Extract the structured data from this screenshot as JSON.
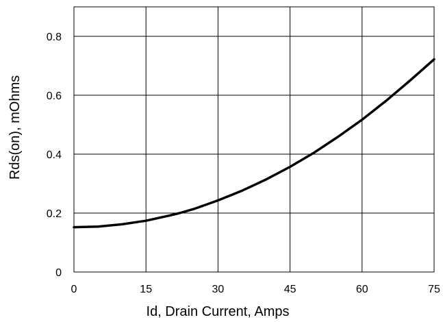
{
  "chart_data": {
    "type": "line",
    "title": "",
    "xlabel": "Id, Drain Current, Amps",
    "ylabel": "Rds(on),  mOhms",
    "xlim": [
      0,
      75
    ],
    "ylim": [
      0,
      0.9
    ],
    "xticks": [
      0,
      15,
      30,
      45,
      60,
      75
    ],
    "xtick_labels": [
      "0",
      "15",
      "30",
      "45",
      "60",
      "75"
    ],
    "yticks": [
      0,
      0.2,
      0.4,
      0.6,
      0.8
    ],
    "ytick_labels": [
      "0",
      "0.2",
      "0.4",
      "0.6",
      "0.8"
    ],
    "grid": true,
    "legend": "none",
    "series": [
      {
        "color": "#000000",
        "x": [
          0,
          5,
          10,
          15,
          20,
          22,
          25,
          30,
          35,
          40,
          45,
          50,
          55,
          60,
          65,
          70,
          75
        ],
        "y": [
          0.152,
          0.154,
          0.162,
          0.174,
          0.192,
          0.2,
          0.214,
          0.243,
          0.276,
          0.314,
          0.357,
          0.405,
          0.459,
          0.517,
          0.581,
          0.65,
          0.722
        ]
      }
    ]
  }
}
